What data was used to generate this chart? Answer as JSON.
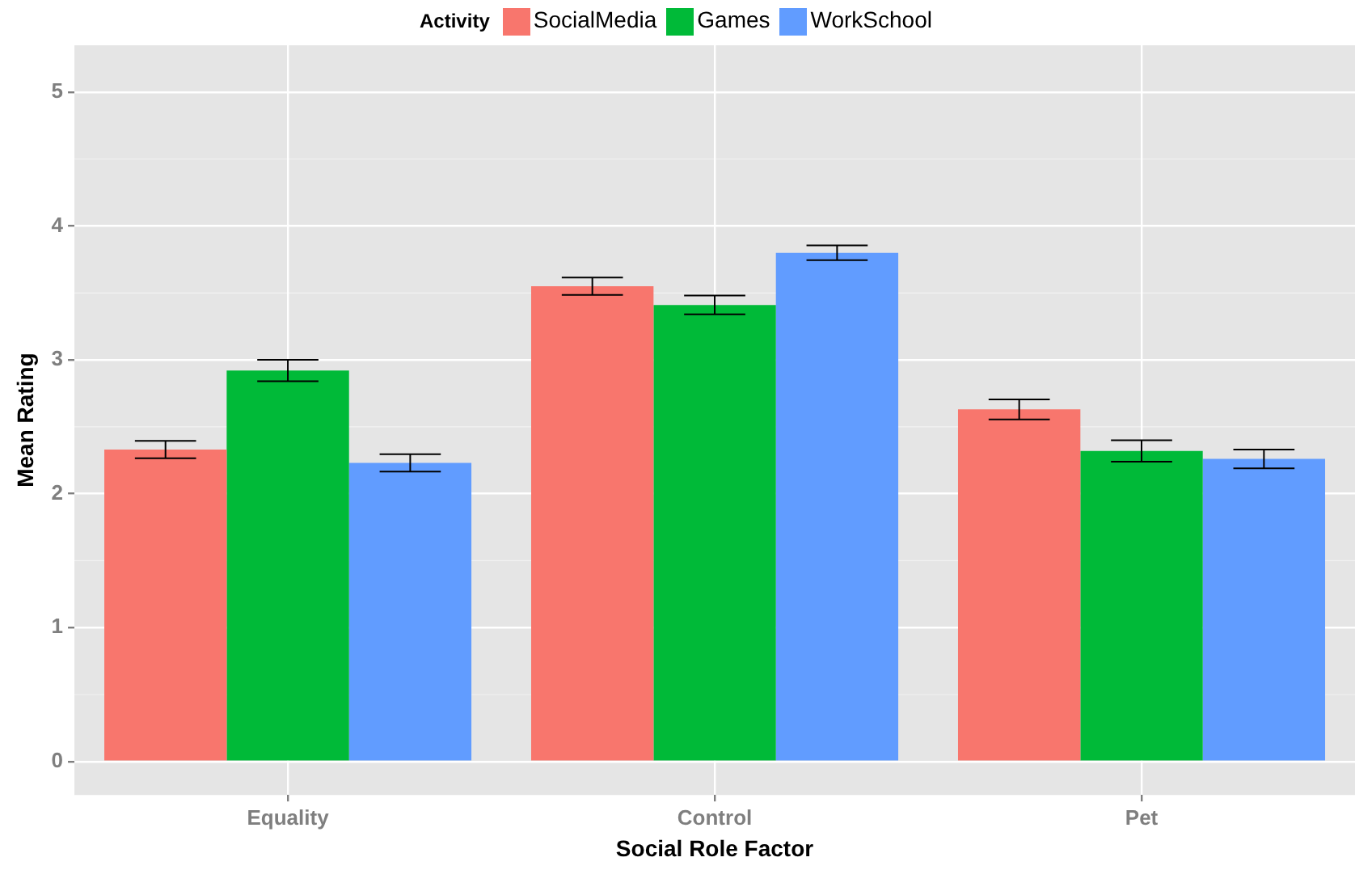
{
  "chart_data": {
    "type": "bar",
    "xlabel": "Social Role Factor",
    "ylabel": "Mean Rating",
    "legend_title": "Activity",
    "legend": "top",
    "categories": [
      "Equality",
      "Control",
      "Pet"
    ],
    "series": [
      {
        "name": "SocialMedia",
        "color": "#f8766d",
        "values": [
          2.33,
          3.55,
          2.63
        ],
        "errors": [
          0.065,
          0.065,
          0.075
        ]
      },
      {
        "name": "Games",
        "color": "#00ba38",
        "values": [
          2.92,
          3.41,
          2.32
        ],
        "errors": [
          0.08,
          0.07,
          0.08
        ]
      },
      {
        "name": "WorkSchool",
        "color": "#619cff",
        "values": [
          2.23,
          3.8,
          2.26
        ],
        "errors": [
          0.065,
          0.055,
          0.07
        ]
      }
    ],
    "ylim": [
      -0.25,
      5.35
    ],
    "yticks": [
      0,
      1,
      2,
      3,
      4,
      5
    ],
    "grid": true
  }
}
